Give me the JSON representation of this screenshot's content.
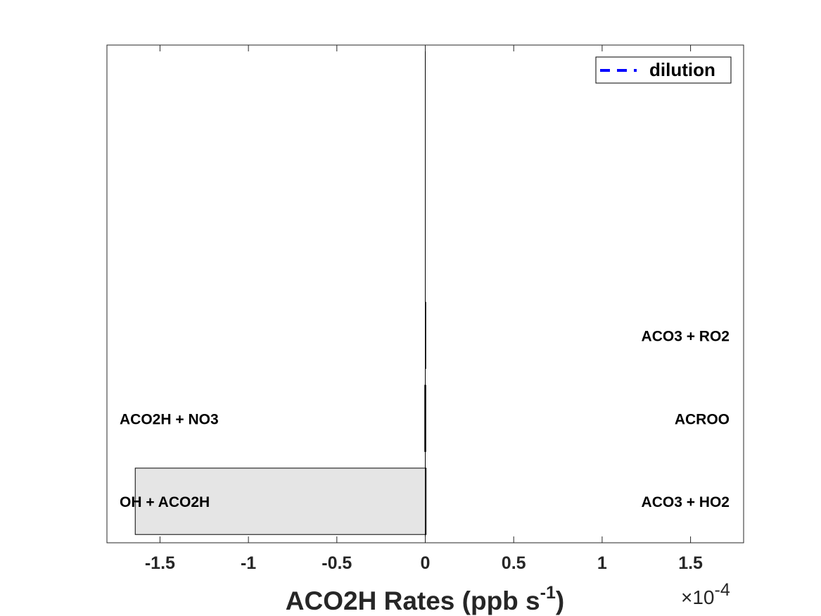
{
  "chart_data": {
    "type": "bar",
    "orientation": "horizontal",
    "xlabel_main": "ACO2H Rates (ppb s",
    "xlabel_sup": "-1",
    "xlabel_tail": ")",
    "xlim": [
      -0.00018,
      0.00018
    ],
    "x_ticks": [
      -0.00015,
      -0.0001,
      -5e-05,
      0,
      5e-05,
      0.0001,
      0.00015
    ],
    "x_tick_labels": [
      "-1.5",
      "-1",
      "-0.5",
      "0",
      "0.5",
      "1",
      "1.5"
    ],
    "x_exponent_base": "×10",
    "x_exponent_sup": "-4",
    "grid": false,
    "legend": {
      "placement": "top-right",
      "entries": [
        {
          "label": "dilution",
          "style": "dashed",
          "color": "#0000ff"
        }
      ]
    },
    "bar_color": "#e5e5e5",
    "rows": [
      {
        "negative_label": "OH + ACO2H",
        "negative": -0.000164,
        "positive_label": "ACO3 + HO2",
        "positive": 5e-07
      },
      {
        "negative_label": "ACO2H + NO3",
        "negative": -3e-07,
        "positive_label": "ACROO",
        "positive": 3e-07
      },
      {
        "negative_label": "",
        "negative": 0,
        "positive_label": "ACO3 + RO2",
        "positive": 3e-07
      }
    ],
    "row_slots": 6
  }
}
